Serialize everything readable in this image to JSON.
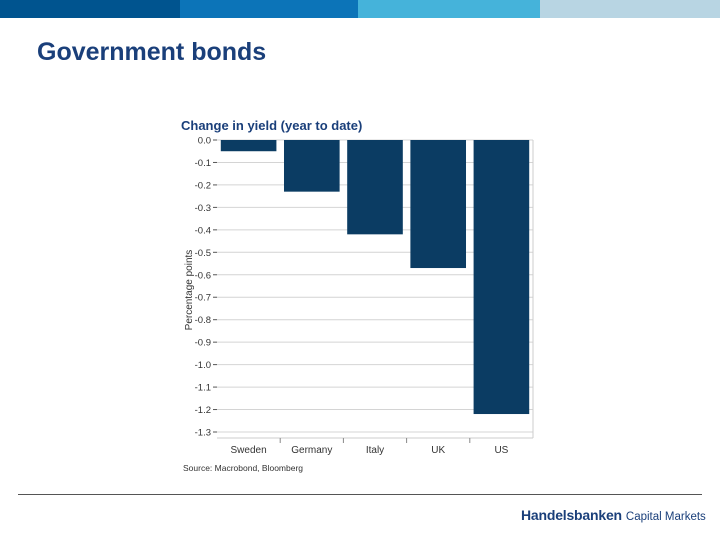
{
  "slide": {
    "title": "Government bonds",
    "logo_main": "Handelsbanken",
    "logo_sub": "Capital Markets"
  },
  "colors": {
    "title": "#1a3f7a",
    "bar": "#0b3c63",
    "top_bar": [
      "#00548f",
      "#0c74b8",
      "#45b3da",
      "#b8d5e3"
    ]
  },
  "chart_data": {
    "type": "bar",
    "title": "Change in yield (year to date)",
    "ylabel": "Percentage points",
    "xlabel": "",
    "source": "Source: Macrobond, Bloomberg",
    "categories": [
      "Sweden",
      "Germany",
      "Italy",
      "UK",
      "US"
    ],
    "values": [
      -0.05,
      -0.23,
      -0.42,
      -0.57,
      -1.22
    ],
    "ylim": [
      -1.3,
      0.0
    ],
    "yticks": [
      "0.0",
      "-0.1",
      "-0.2",
      "-0.3",
      "-0.4",
      "-0.5",
      "-0.6",
      "-0.7",
      "-0.8",
      "-0.9",
      "-1.0",
      "-1.1",
      "-1.2",
      "-1.3"
    ],
    "grid": true
  }
}
